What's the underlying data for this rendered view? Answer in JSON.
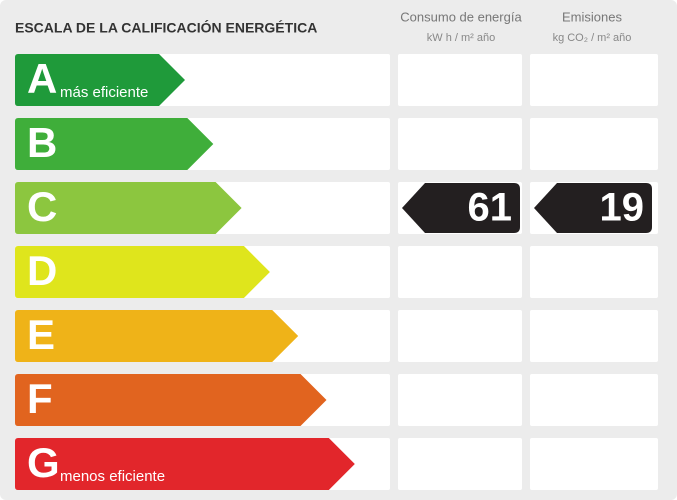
{
  "header": {
    "title": "ESCALA DE LA CALIFICACIÓN ENERGÉTICA"
  },
  "columns": [
    {
      "title": "Consumo de energía",
      "unit": "kW h / m² año"
    },
    {
      "title": "Emisiones",
      "unit": "kg CO₂ / m² año"
    }
  ],
  "rows": [
    {
      "letter": "A",
      "label": "más eficiente",
      "color": "#1f9a3a"
    },
    {
      "letter": "B",
      "color": "#3fae3a"
    },
    {
      "letter": "C",
      "color": "#8cc63f",
      "consumption": 61,
      "emissions": 19
    },
    {
      "letter": "D",
      "color": "#dfe51c"
    },
    {
      "letter": "E",
      "color": "#efb318"
    },
    {
      "letter": "F",
      "color": "#e1641f"
    },
    {
      "letter": "G",
      "label": "menos eficiente",
      "color": "#e2262b"
    }
  ]
}
